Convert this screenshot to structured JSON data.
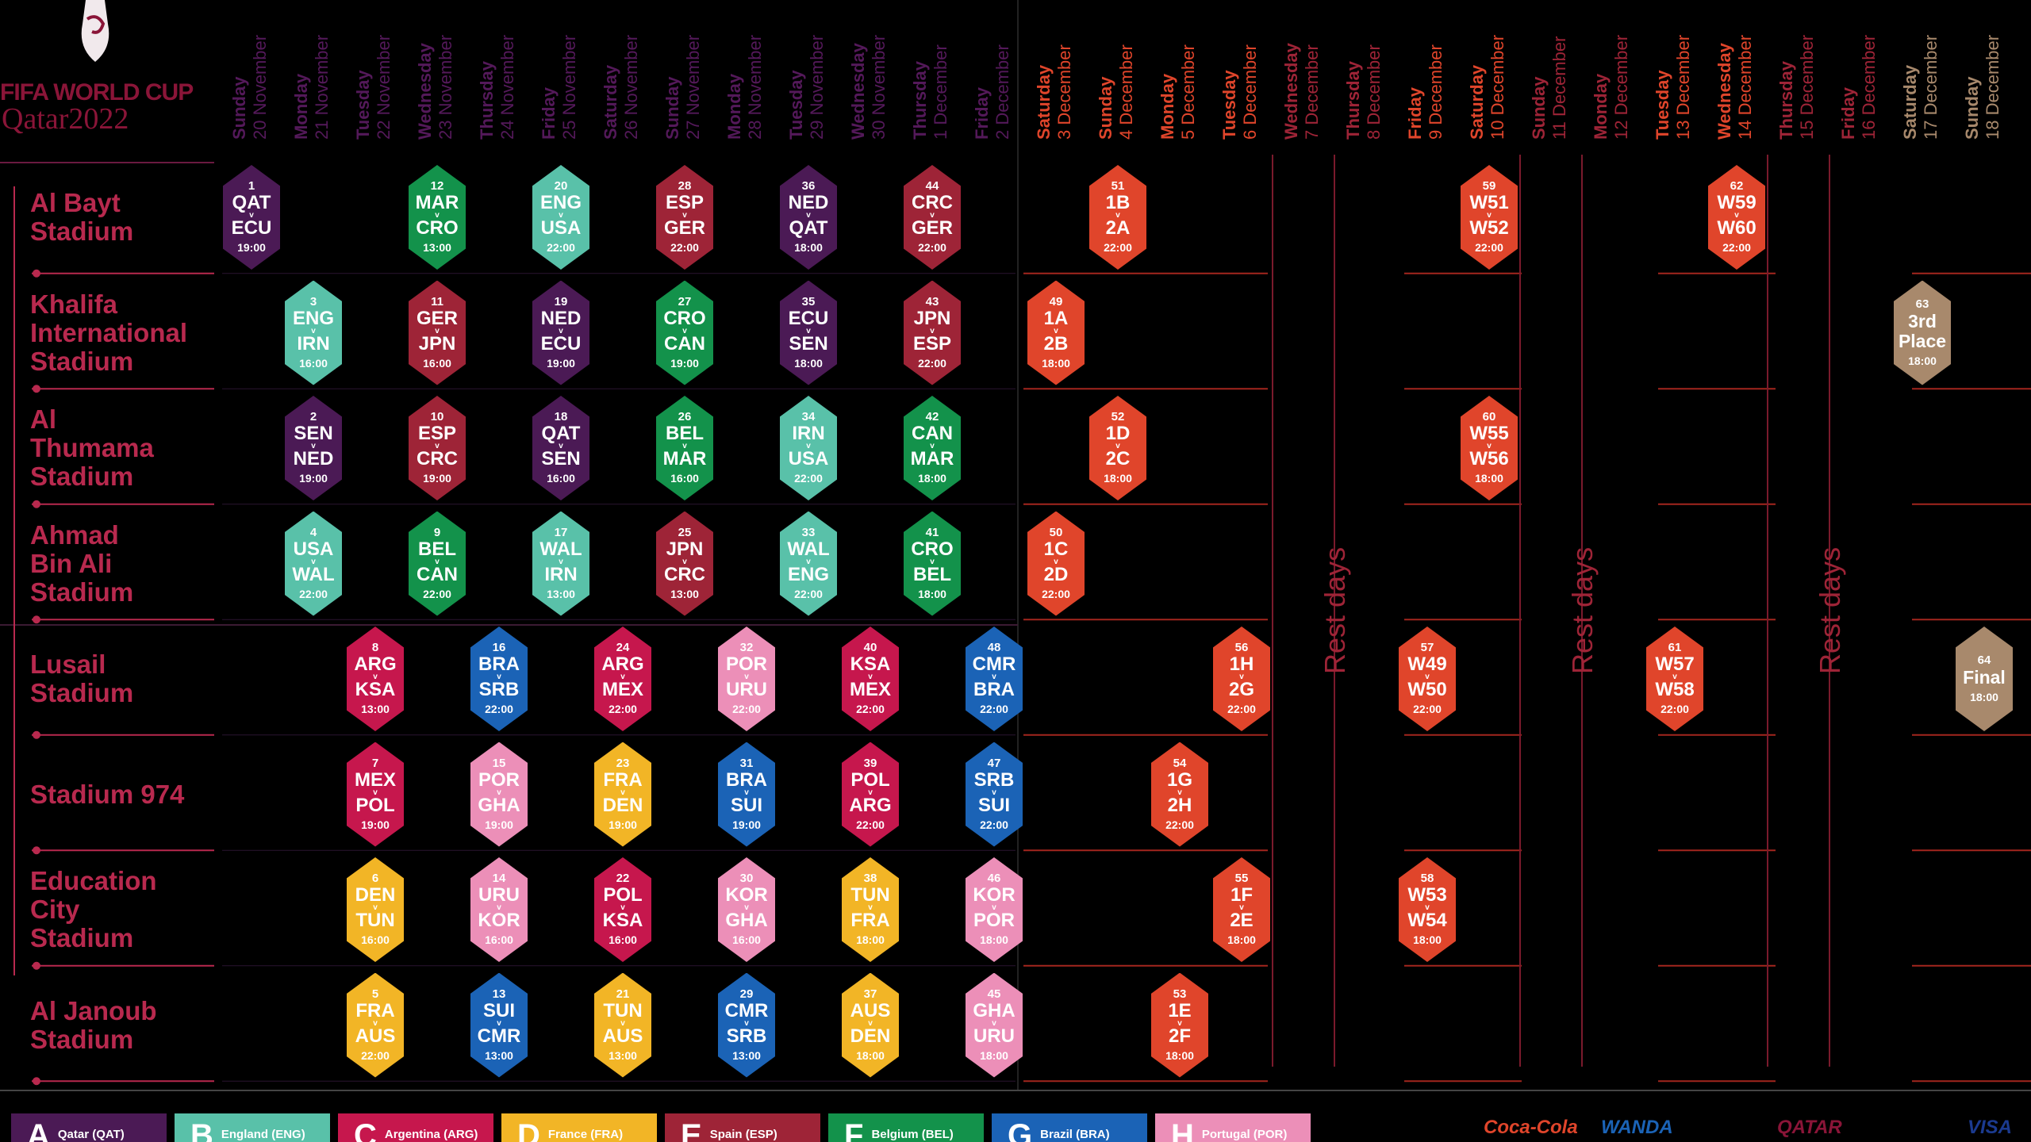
{
  "colors": {
    "hdr_group": "#54195a",
    "hdr_knockout": "#e0452b",
    "hdr_rest": "#9e2437",
    "hdr_final": "#a8896c",
    "stadium": "#b8294e",
    "group": {
      "A": "#4b1a55",
      "B": "#59c1a9",
      "C": "#9a1c42",
      "D": "#f2b526",
      "E": "#9e2437",
      "F": "#13924b",
      "G": "#1b63b6",
      "H": "#ec8fb8"
    },
    "knockout": "#e0452b",
    "final": "#a8896c"
  },
  "branding": {
    "line1": "FIFA WORLD CUP",
    "line2": "Qatar2022",
    "trophy_icon": "world-cup-trophy-icon"
  },
  "days": [
    {
      "day": "Sunday",
      "date": "20 November",
      "kind": "group"
    },
    {
      "day": "Monday",
      "date": "21 November",
      "kind": "group"
    },
    {
      "day": "Tuesday",
      "date": "22 November",
      "kind": "group"
    },
    {
      "day": "Wednesday",
      "date": "23 November",
      "kind": "group"
    },
    {
      "day": "Thursday",
      "date": "24 November",
      "kind": "group"
    },
    {
      "day": "Friday",
      "date": "25 November",
      "kind": "group"
    },
    {
      "day": "Saturday",
      "date": "26 November",
      "kind": "group"
    },
    {
      "day": "Sunday",
      "date": "27 November",
      "kind": "group"
    },
    {
      "day": "Monday",
      "date": "28 November",
      "kind": "group"
    },
    {
      "day": "Tuesday",
      "date": "29 November",
      "kind": "group"
    },
    {
      "day": "Wednesday",
      "date": "30 November",
      "kind": "group"
    },
    {
      "day": "Thursday",
      "date": "1 December",
      "kind": "group"
    },
    {
      "day": "Friday",
      "date": "2 December",
      "kind": "group"
    },
    {
      "day": "Saturday",
      "date": "3 December",
      "kind": "ko"
    },
    {
      "day": "Sunday",
      "date": "4 December",
      "kind": "ko"
    },
    {
      "day": "Monday",
      "date": "5 December",
      "kind": "ko"
    },
    {
      "day": "Tuesday",
      "date": "6 December",
      "kind": "ko"
    },
    {
      "day": "Wednesday",
      "date": "7 December",
      "kind": "rest"
    },
    {
      "day": "Thursday",
      "date": "8 December",
      "kind": "rest"
    },
    {
      "day": "Friday",
      "date": "9 December",
      "kind": "ko"
    },
    {
      "day": "Saturday",
      "date": "10 December",
      "kind": "ko"
    },
    {
      "day": "Sunday",
      "date": "11 December",
      "kind": "rest"
    },
    {
      "day": "Monday",
      "date": "12 December",
      "kind": "rest"
    },
    {
      "day": "Tuesday",
      "date": "13 December",
      "kind": "ko"
    },
    {
      "day": "Wednesday",
      "date": "14 December",
      "kind": "ko"
    },
    {
      "day": "Thursday",
      "date": "15 December",
      "kind": "rest"
    },
    {
      "day": "Friday",
      "date": "16 December",
      "kind": "rest"
    },
    {
      "day": "Saturday",
      "date": "17 December",
      "kind": "final"
    },
    {
      "day": "Sunday",
      "date": "18 December",
      "kind": "final"
    }
  ],
  "stadiums": [
    {
      "name": [
        "Al Bayt",
        "Stadium"
      ]
    },
    {
      "name": [
        "Khalifa",
        "International",
        "Stadium"
      ]
    },
    {
      "name": [
        "Al",
        "Thumama",
        "Stadium"
      ]
    },
    {
      "name": [
        "Ahmad",
        "Bin Ali",
        "Stadium"
      ]
    },
    {
      "name": [
        "Lusail",
        "Stadium"
      ]
    },
    {
      "name": [
        "Stadium 974"
      ]
    },
    {
      "name": [
        "Education",
        "City",
        "Stadium"
      ]
    },
    {
      "name": [
        "Al Janoub",
        "Stadium"
      ]
    }
  ],
  "matches": [
    {
      "no": "1",
      "t1": "QAT",
      "t2": "ECU",
      "time": "19:00",
      "group": "A",
      "stadium": 0,
      "day": 0
    },
    {
      "no": "12",
      "t1": "MAR",
      "t2": "CRO",
      "time": "13:00",
      "group": "F",
      "stadium": 0,
      "day": 3
    },
    {
      "no": "20",
      "t1": "ENG",
      "t2": "USA",
      "time": "22:00",
      "group": "B",
      "stadium": 0,
      "day": 5
    },
    {
      "no": "28",
      "t1": "ESP",
      "t2": "GER",
      "time": "22:00",
      "group": "E",
      "stadium": 0,
      "day": 7
    },
    {
      "no": "36",
      "t1": "NED",
      "t2": "QAT",
      "time": "18:00",
      "group": "A",
      "stadium": 0,
      "day": 9
    },
    {
      "no": "44",
      "t1": "CRC",
      "t2": "GER",
      "time": "22:00",
      "group": "E",
      "stadium": 0,
      "day": 11
    },
    {
      "no": "3",
      "t1": "ENG",
      "t2": "IRN",
      "time": "16:00",
      "group": "B",
      "stadium": 1,
      "day": 1
    },
    {
      "no": "11",
      "t1": "GER",
      "t2": "JPN",
      "time": "16:00",
      "group": "E",
      "stadium": 1,
      "day": 3
    },
    {
      "no": "19",
      "t1": "NED",
      "t2": "ECU",
      "time": "19:00",
      "group": "A",
      "stadium": 1,
      "day": 5
    },
    {
      "no": "27",
      "t1": "CRO",
      "t2": "CAN",
      "time": "19:00",
      "group": "F",
      "stadium": 1,
      "day": 7
    },
    {
      "no": "35",
      "t1": "ECU",
      "t2": "SEN",
      "time": "18:00",
      "group": "A",
      "stadium": 1,
      "day": 9
    },
    {
      "no": "43",
      "t1": "JPN",
      "t2": "ESP",
      "time": "22:00",
      "group": "E",
      "stadium": 1,
      "day": 11
    },
    {
      "no": "2",
      "t1": "SEN",
      "t2": "NED",
      "time": "19:00",
      "group": "A",
      "stadium": 2,
      "day": 1
    },
    {
      "no": "10",
      "t1": "ESP",
      "t2": "CRC",
      "time": "19:00",
      "group": "E",
      "stadium": 2,
      "day": 3
    },
    {
      "no": "18",
      "t1": "QAT",
      "t2": "SEN",
      "time": "16:00",
      "group": "A",
      "stadium": 2,
      "day": 5
    },
    {
      "no": "26",
      "t1": "BEL",
      "t2": "MAR",
      "time": "16:00",
      "group": "F",
      "stadium": 2,
      "day": 7
    },
    {
      "no": "34",
      "t1": "IRN",
      "t2": "USA",
      "time": "22:00",
      "group": "B",
      "stadium": 2,
      "day": 9
    },
    {
      "no": "42",
      "t1": "CAN",
      "t2": "MAR",
      "time": "18:00",
      "group": "F",
      "stadium": 2,
      "day": 11
    },
    {
      "no": "4",
      "t1": "USA",
      "t2": "WAL",
      "time": "22:00",
      "group": "B",
      "stadium": 3,
      "day": 1
    },
    {
      "no": "9",
      "t1": "BEL",
      "t2": "CAN",
      "time": "22:00",
      "group": "F",
      "stadium": 3,
      "day": 3
    },
    {
      "no": "17",
      "t1": "WAL",
      "t2": "IRN",
      "time": "13:00",
      "group": "B",
      "stadium": 3,
      "day": 5
    },
    {
      "no": "25",
      "t1": "JPN",
      "t2": "CRC",
      "time": "13:00",
      "group": "E",
      "stadium": 3,
      "day": 7
    },
    {
      "no": "33",
      "t1": "WAL",
      "t2": "ENG",
      "time": "22:00",
      "group": "B",
      "stadium": 3,
      "day": 9
    },
    {
      "no": "41",
      "t1": "CRO",
      "t2": "BEL",
      "time": "18:00",
      "group": "F",
      "stadium": 3,
      "day": 11
    },
    {
      "no": "8",
      "t1": "ARG",
      "t2": "KSA",
      "time": "13:00",
      "group": "C",
      "stadium": 4,
      "day": 2
    },
    {
      "no": "16",
      "t1": "BRA",
      "t2": "SRB",
      "time": "22:00",
      "group": "G",
      "stadium": 4,
      "day": 4
    },
    {
      "no": "24",
      "t1": "ARG",
      "t2": "MEX",
      "time": "22:00",
      "group": "C",
      "stadium": 4,
      "day": 6
    },
    {
      "no": "32",
      "t1": "POR",
      "t2": "URU",
      "time": "22:00",
      "group": "H",
      "stadium": 4,
      "day": 8
    },
    {
      "no": "40",
      "t1": "KSA",
      "t2": "MEX",
      "time": "22:00",
      "group": "C",
      "stadium": 4,
      "day": 10
    },
    {
      "no": "48",
      "t1": "CMR",
      "t2": "BRA",
      "time": "22:00",
      "group": "G",
      "stadium": 4,
      "day": 12
    },
    {
      "no": "7",
      "t1": "MEX",
      "t2": "POL",
      "time": "19:00",
      "group": "C",
      "stadium": 5,
      "day": 2
    },
    {
      "no": "15",
      "t1": "POR",
      "t2": "GHA",
      "time": "19:00",
      "group": "H",
      "stadium": 5,
      "day": 4
    },
    {
      "no": "23",
      "t1": "FRA",
      "t2": "DEN",
      "time": "19:00",
      "group": "D",
      "stadium": 5,
      "day": 6
    },
    {
      "no": "31",
      "t1": "BRA",
      "t2": "SUI",
      "time": "19:00",
      "group": "G",
      "stadium": 5,
      "day": 8
    },
    {
      "no": "39",
      "t1": "POL",
      "t2": "ARG",
      "time": "22:00",
      "group": "C",
      "stadium": 5,
      "day": 10
    },
    {
      "no": "47",
      "t1": "SRB",
      "t2": "SUI",
      "time": "22:00",
      "group": "G",
      "stadium": 5,
      "day": 12
    },
    {
      "no": "6",
      "t1": "DEN",
      "t2": "TUN",
      "time": "16:00",
      "group": "D",
      "stadium": 6,
      "day": 2
    },
    {
      "no": "14",
      "t1": "URU",
      "t2": "KOR",
      "time": "16:00",
      "group": "H",
      "stadium": 6,
      "day": 4
    },
    {
      "no": "22",
      "t1": "POL",
      "t2": "KSA",
      "time": "16:00",
      "group": "C",
      "stadium": 6,
      "day": 6
    },
    {
      "no": "30",
      "t1": "KOR",
      "t2": "GHA",
      "time": "16:00",
      "group": "H",
      "stadium": 6,
      "day": 8
    },
    {
      "no": "38",
      "t1": "TUN",
      "t2": "FRA",
      "time": "18:00",
      "group": "D",
      "stadium": 6,
      "day": 10
    },
    {
      "no": "46",
      "t1": "KOR",
      "t2": "POR",
      "time": "18:00",
      "group": "H",
      "stadium": 6,
      "day": 12
    },
    {
      "no": "5",
      "t1": "FRA",
      "t2": "AUS",
      "time": "22:00",
      "group": "D",
      "stadium": 7,
      "day": 2
    },
    {
      "no": "13",
      "t1": "SUI",
      "t2": "CMR",
      "time": "13:00",
      "group": "G",
      "stadium": 7,
      "day": 4
    },
    {
      "no": "21",
      "t1": "TUN",
      "t2": "AUS",
      "time": "13:00",
      "group": "D",
      "stadium": 7,
      "day": 6
    },
    {
      "no": "29",
      "t1": "CMR",
      "t2": "SRB",
      "time": "13:00",
      "group": "G",
      "stadium": 7,
      "day": 8
    },
    {
      "no": "37",
      "t1": "AUS",
      "t2": "DEN",
      "time": "18:00",
      "group": "D",
      "stadium": 7,
      "day": 10
    },
    {
      "no": "45",
      "t1": "GHA",
      "t2": "URU",
      "time": "18:00",
      "group": "H",
      "stadium": 7,
      "day": 12
    },
    {
      "no": "51",
      "t1": "1B",
      "t2": "2A",
      "time": "22:00",
      "group": "KO",
      "stadium": 0,
      "day": 14
    },
    {
      "no": "59",
      "t1": "W51",
      "t2": "W52",
      "time": "22:00",
      "group": "KO",
      "stadium": 0,
      "day": 20
    },
    {
      "no": "62",
      "t1": "W59",
      "t2": "W60",
      "time": "22:00",
      "group": "KO",
      "stadium": 0,
      "day": 24
    },
    {
      "no": "49",
      "t1": "1A",
      "t2": "2B",
      "time": "18:00",
      "group": "KO",
      "stadium": 1,
      "day": 13
    },
    {
      "no": "63",
      "word": [
        "3rd",
        "Place"
      ],
      "time": "18:00",
      "group": "FIN",
      "stadium": 1,
      "day": 27
    },
    {
      "no": "52",
      "t1": "1D",
      "t2": "2C",
      "time": "18:00",
      "group": "KO",
      "stadium": 2,
      "day": 14
    },
    {
      "no": "60",
      "t1": "W55",
      "t2": "W56",
      "time": "18:00",
      "group": "KO",
      "stadium": 2,
      "day": 20
    },
    {
      "no": "50",
      "t1": "1C",
      "t2": "2D",
      "time": "22:00",
      "group": "KO",
      "stadium": 3,
      "day": 13
    },
    {
      "no": "56",
      "t1": "1H",
      "t2": "2G",
      "time": "22:00",
      "group": "KO",
      "stadium": 4,
      "day": 16
    },
    {
      "no": "57",
      "t1": "W49",
      "t2": "W50",
      "time": "22:00",
      "group": "KO",
      "stadium": 4,
      "day": 19
    },
    {
      "no": "61",
      "t1": "W57",
      "t2": "W58",
      "time": "22:00",
      "group": "KO",
      "stadium": 4,
      "day": 23
    },
    {
      "no": "64",
      "word": [
        "Final"
      ],
      "time": "18:00",
      "group": "FIN",
      "stadium": 4,
      "day": 28
    },
    {
      "no": "54",
      "t1": "1G",
      "t2": "2H",
      "time": "22:00",
      "group": "KO",
      "stadium": 5,
      "day": 15
    },
    {
      "no": "55",
      "t1": "1F",
      "t2": "2E",
      "time": "18:00",
      "group": "KO",
      "stadium": 6,
      "day": 16
    },
    {
      "no": "58",
      "t1": "W53",
      "t2": "W54",
      "time": "18:00",
      "group": "KO",
      "stadium": 6,
      "day": 19
    },
    {
      "no": "53",
      "t1": "1E",
      "t2": "2F",
      "time": "18:00",
      "group": "KO",
      "stadium": 7,
      "day": 15
    }
  ],
  "v_label": "v",
  "rest_label": "Rest days",
  "legend": [
    {
      "letter": "A",
      "team": "Qatar (QAT)",
      "color": "#4b1a55"
    },
    {
      "letter": "B",
      "team": "England (ENG)",
      "color": "#59c1a9"
    },
    {
      "letter": "C",
      "team": "Argentina (ARG)",
      "color": "#c6174d"
    },
    {
      "letter": "D",
      "team": "France (FRA)",
      "color": "#f2b526"
    },
    {
      "letter": "E",
      "team": "Spain (ESP)",
      "color": "#9e2437"
    },
    {
      "letter": "F",
      "team": "Belgium (BEL)",
      "color": "#13924b"
    },
    {
      "letter": "G",
      "team": "Brazil (BRA)",
      "color": "#1b63b6"
    },
    {
      "letter": "H",
      "team": "Portugal (POR)",
      "color": "#ec8fb8"
    }
  ],
  "sponsors": [
    "Coca-Cola",
    "WANDA",
    "QATAR",
    "VISA"
  ]
}
